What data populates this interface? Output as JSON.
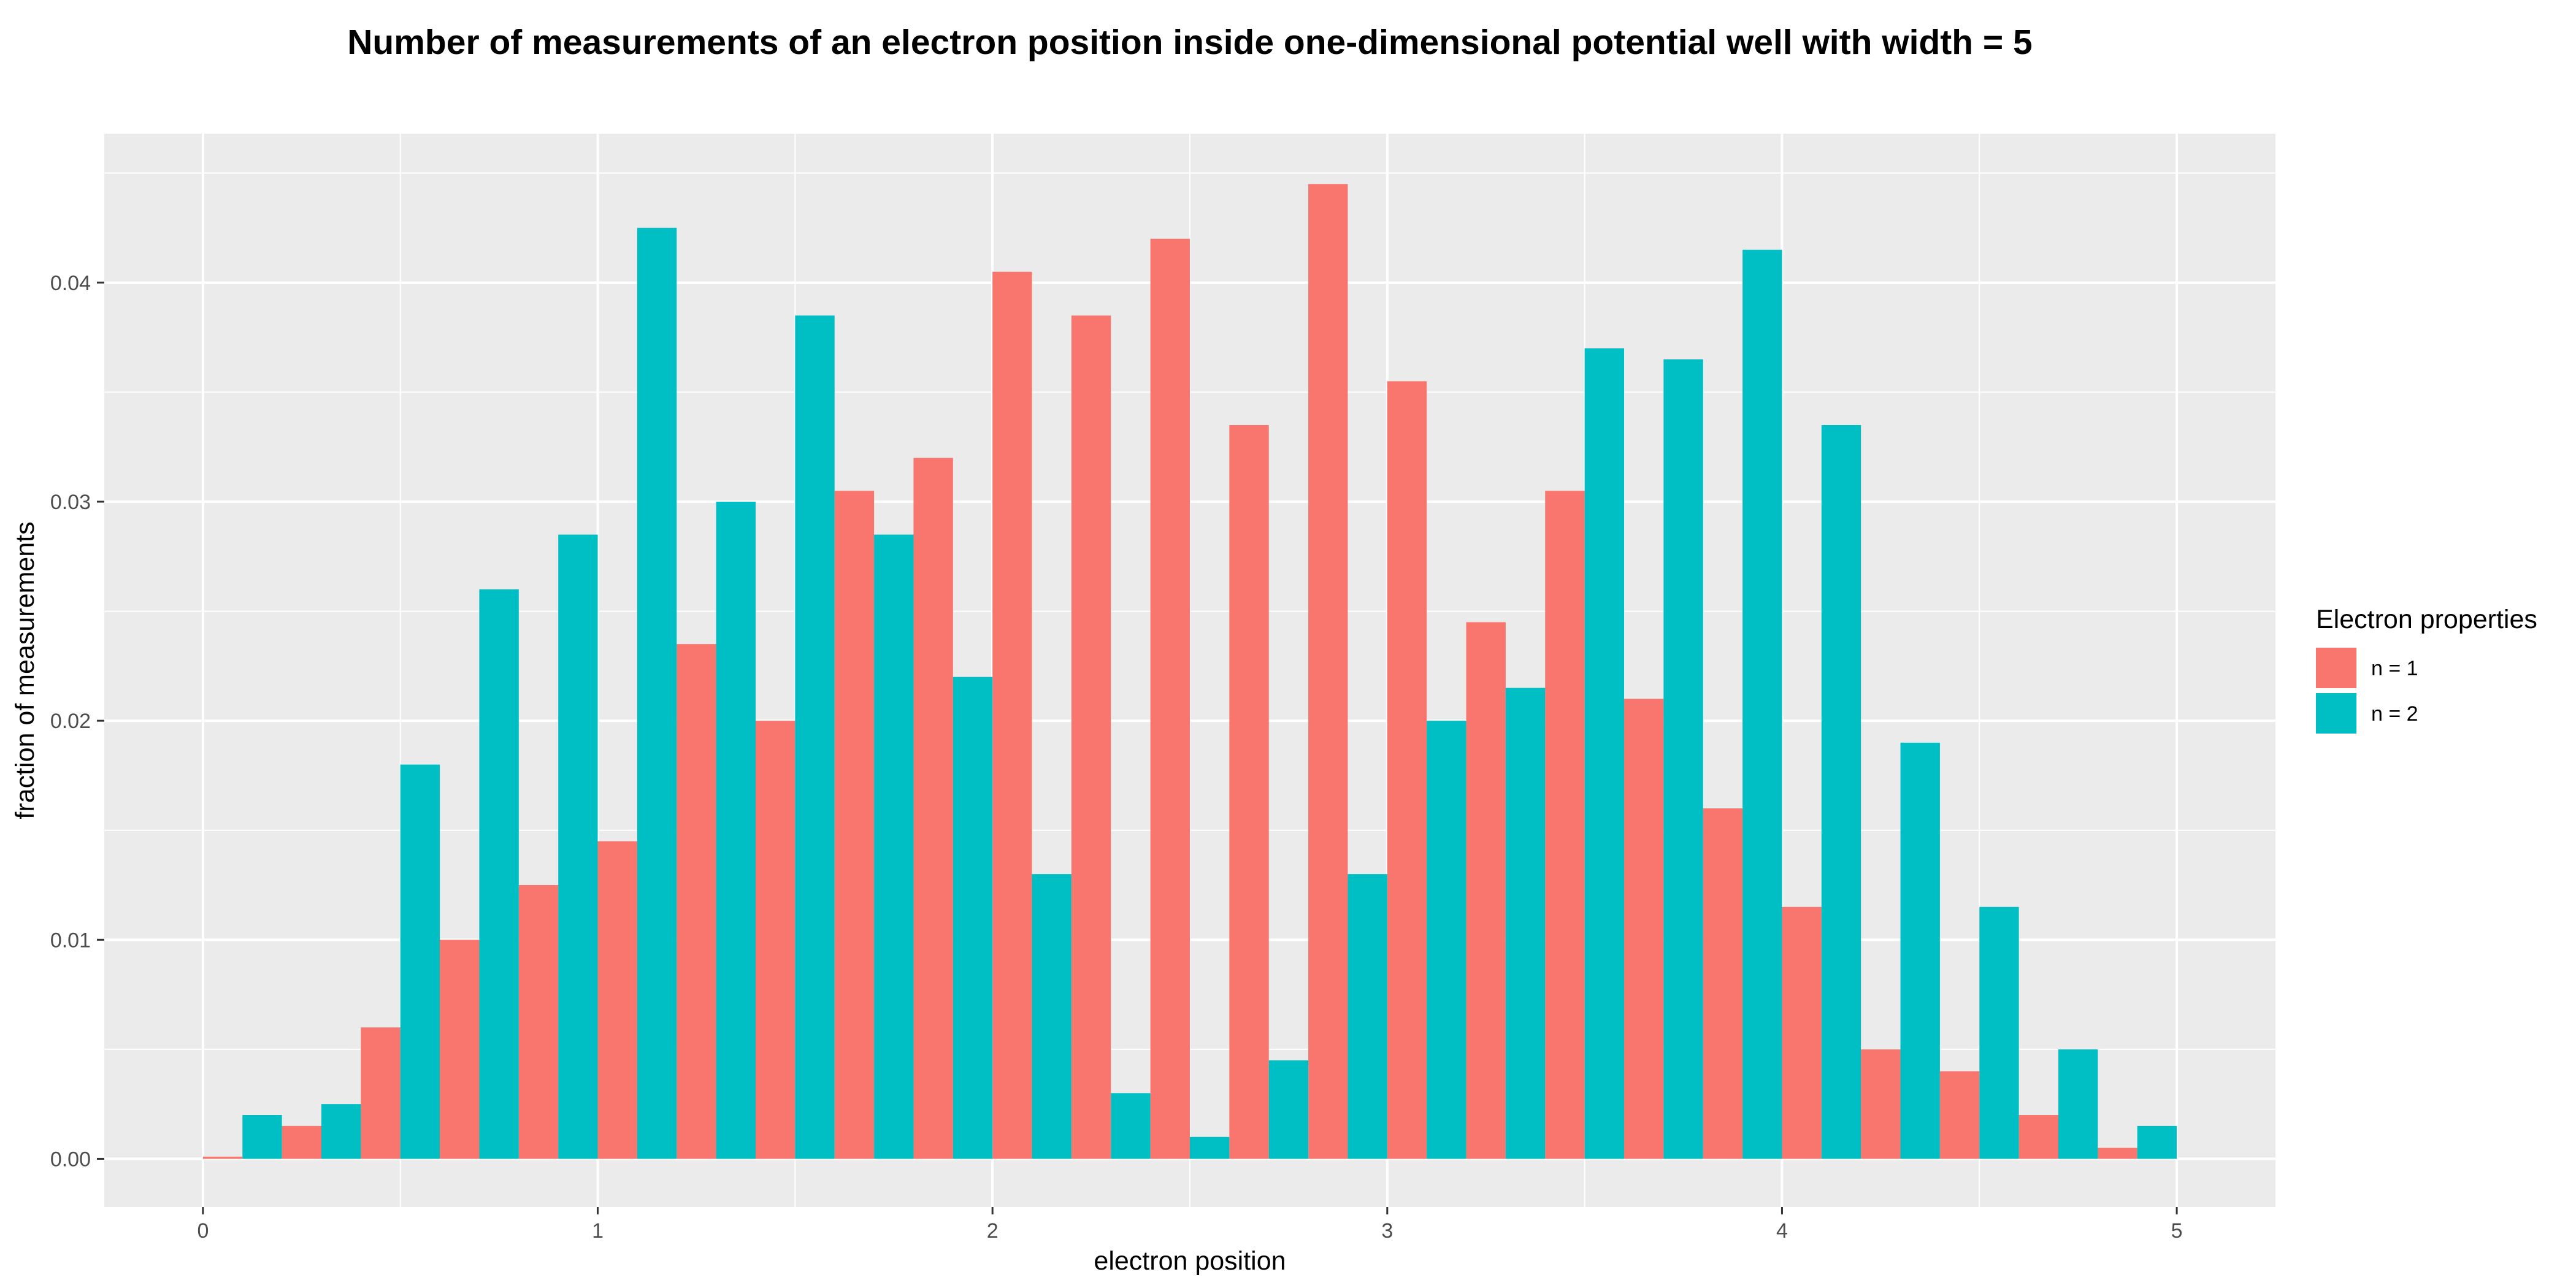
{
  "chart_data": {
    "type": "bar",
    "title": "Number of measurements of an electron position inside one-dimensional potential well with width = 5",
    "xlabel": "electron position",
    "ylabel": "fraction of measurements",
    "xlim": [
      -0.25,
      5.25
    ],
    "ylim": [
      -0.0022,
      0.0468
    ],
    "x_ticks": [
      "0",
      "1",
      "2",
      "3",
      "4",
      "5"
    ],
    "y_ticks": [
      "0.00",
      "0.01",
      "0.02",
      "0.03",
      "0.04"
    ],
    "grid": true,
    "bin_width": 0.2,
    "legend": {
      "title": "Electron properties",
      "placement": "right"
    },
    "x": [
      0.1,
      0.3,
      0.5,
      0.7,
      0.9,
      1.1,
      1.3,
      1.5,
      1.7,
      1.9,
      2.1,
      2.3,
      2.5,
      2.7,
      2.9,
      3.1,
      3.3,
      3.5,
      3.7,
      3.9,
      4.1,
      4.3,
      4.5,
      4.7,
      4.9
    ],
    "series": [
      {
        "name": "n = 1",
        "color": "#F8766D",
        "values": [
          0.0001,
          0.0015,
          0.006,
          0.01,
          0.0125,
          0.0145,
          0.0235,
          0.02,
          0.0305,
          0.032,
          0.0405,
          0.0385,
          0.042,
          0.0335,
          0.0445,
          0.0355,
          0.0245,
          0.0305,
          0.021,
          0.016,
          0.0115,
          0.005,
          0.004,
          0.002,
          0.0005
        ]
      },
      {
        "name": "n = 2",
        "color": "#00BFC4",
        "values": [
          0.002,
          0.0025,
          0.018,
          0.026,
          0.0285,
          0.0425,
          0.03,
          0.0385,
          0.0285,
          0.022,
          0.013,
          0.003,
          0.001,
          0.0045,
          0.013,
          0.02,
          0.0215,
          0.037,
          0.0365,
          0.0415,
          0.0335,
          0.019,
          0.0115,
          0.005,
          0.0015
        ]
      }
    ]
  }
}
